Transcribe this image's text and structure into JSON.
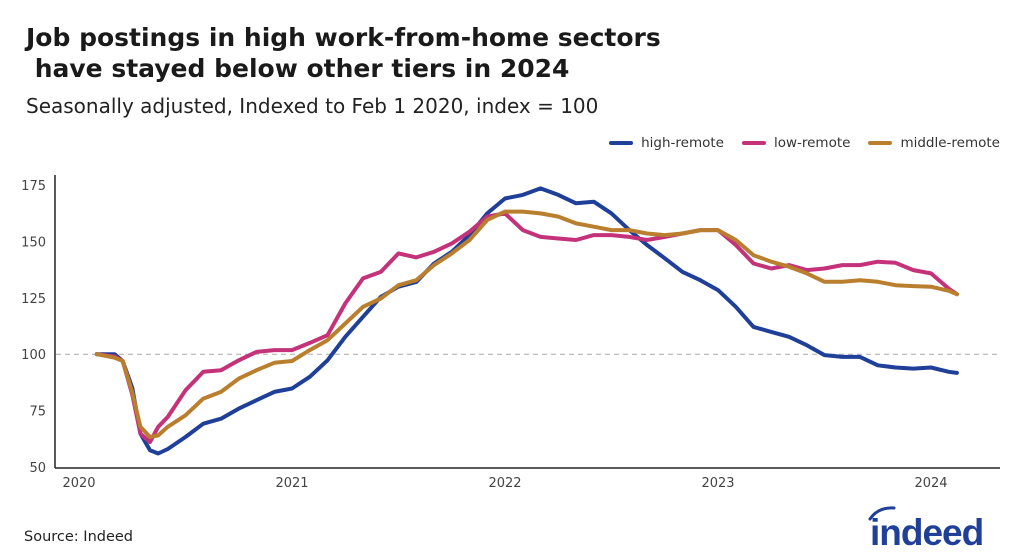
{
  "chart_data": {
    "type": "line",
    "title": "Job postings in high work-from-home sectors\n have stayed below other tiers in 2024",
    "subtitle": "Seasonally adjusted, Indexed to Feb 1 2020, index = 100",
    "xlabel": "",
    "ylabel": "",
    "ylim": [
      50,
      175
    ],
    "yticks": [
      "50",
      "75",
      "100",
      "125",
      "150",
      "175"
    ],
    "xticks": [
      "2020",
      "2021",
      "2022",
      "2023",
      "2024"
    ],
    "reference_line": 100,
    "grid": false,
    "legend_position": "top-right",
    "x": [
      "2020-02-01",
      "2020-03-01",
      "2020-03-15",
      "2020-04-01",
      "2020-04-15",
      "2020-05-01",
      "2020-05-15",
      "2020-06-01",
      "2020-07-01",
      "2020-08-01",
      "2020-09-01",
      "2020-10-01",
      "2020-11-01",
      "2020-12-01",
      "2021-01-01",
      "2021-02-01",
      "2021-03-01",
      "2021-04-01",
      "2021-05-01",
      "2021-06-01",
      "2021-07-01",
      "2021-08-01",
      "2021-09-01",
      "2021-10-01",
      "2021-11-01",
      "2021-12-01",
      "2022-01-01",
      "2022-02-01",
      "2022-03-01",
      "2022-04-01",
      "2022-05-01",
      "2022-06-01",
      "2022-07-01",
      "2022-08-01",
      "2022-09-01",
      "2022-10-01",
      "2022-11-01",
      "2022-12-01",
      "2023-01-01",
      "2023-02-01",
      "2023-03-01",
      "2023-04-01",
      "2023-05-01",
      "2023-06-01",
      "2023-07-01",
      "2023-08-01",
      "2023-09-01",
      "2023-10-01",
      "2023-11-01",
      "2023-12-01",
      "2024-01-01",
      "2024-02-01",
      "2024-02-15"
    ],
    "series": [
      {
        "name": "high-remote",
        "color": "#1f3f98",
        "values": [
          100,
          100,
          97,
          85,
          64.8,
          57.4,
          56,
          58,
          63.3,
          69.2,
          71.4,
          75.9,
          79.6,
          83.3,
          84.8,
          90,
          97.3,
          107.7,
          116.6,
          125.4,
          129.9,
          132,
          140.2,
          145.4,
          152.8,
          162.4,
          169,
          170.6,
          173.5,
          170.6,
          166.9,
          167.6,
          162.4,
          155,
          148.4,
          142.5,
          136.5,
          132.8,
          128.4,
          121,
          112.1,
          109.9,
          107.7,
          104,
          99.6,
          98.8,
          98.8,
          95.1,
          94.1,
          93.6,
          94.1,
          92.2,
          91.7
        ]
      },
      {
        "name": "low-remote",
        "color": "#c4327a",
        "values": [
          100,
          99,
          97,
          82,
          64.8,
          61.1,
          67.8,
          72.2,
          84,
          92.2,
          92.9,
          97.3,
          101,
          101.8,
          101.8,
          105,
          108.4,
          122.5,
          133.6,
          136.5,
          144.7,
          142.9,
          145.4,
          149.1,
          154.3,
          161,
          162.4,
          155,
          152,
          151.3,
          150.6,
          152.8,
          152.8,
          152,
          150.6,
          152,
          153.5,
          155,
          155,
          148.4,
          140.2,
          138,
          139.5,
          137.3,
          138,
          139.5,
          139.5,
          141,
          140.5,
          137.3,
          135.8,
          129.1,
          126.6
        ]
      },
      {
        "name": "middle-remote",
        "color": "#b97f2e",
        "values": [
          100,
          98.5,
          97,
          83,
          67.8,
          63.3,
          64,
          67.8,
          72.9,
          80.3,
          83.3,
          89.2,
          92.9,
          96.2,
          97,
          101.8,
          106.2,
          113.6,
          121,
          124.7,
          130.6,
          132.8,
          139.5,
          144.7,
          150.6,
          159.5,
          163.2,
          163.2,
          162.4,
          161,
          158,
          156.5,
          155,
          155,
          153.5,
          152.8,
          153.5,
          155,
          155,
          150.6,
          143.9,
          141,
          138.8,
          135.8,
          132.1,
          132.1,
          132.8,
          132.1,
          130.6,
          130.2,
          129.9,
          128.1,
          126.6
        ]
      }
    ]
  },
  "source": "Source: Indeed",
  "logo_text": "indeed",
  "colors": {
    "logo": "#1f3f98",
    "axis": "#222222",
    "reference": "#aaaaaa"
  }
}
